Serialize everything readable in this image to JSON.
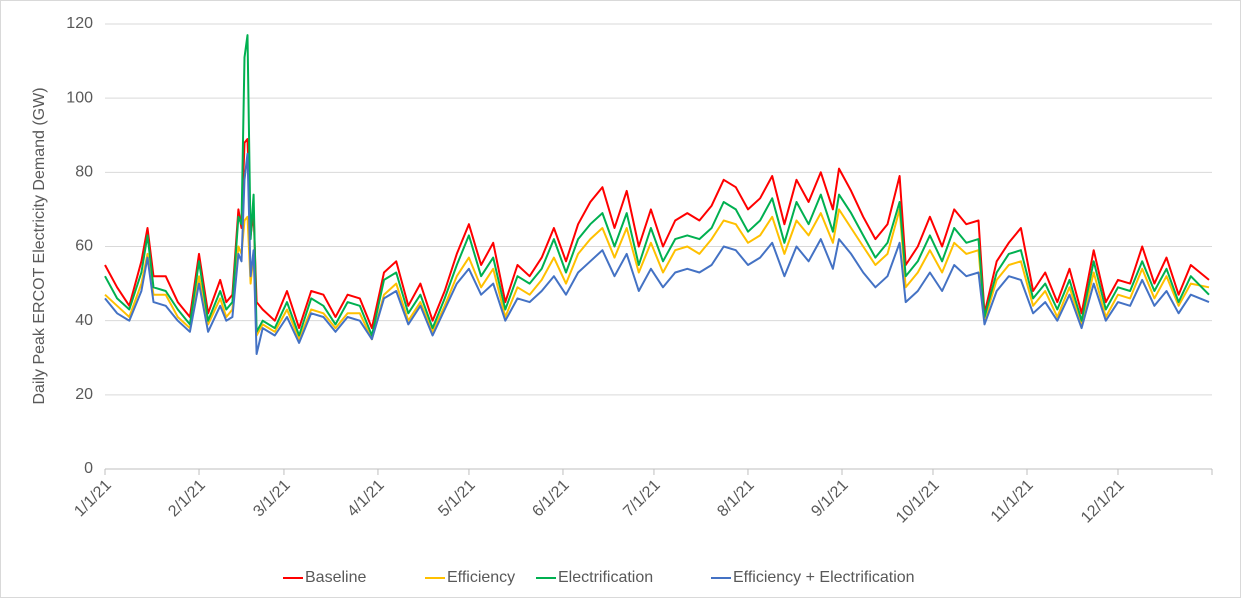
{
  "chart_data": {
    "type": "line",
    "y_label": "Daily Peak ERCOT Electricity Demand (GW)",
    "x": [
      0,
      4,
      8,
      12,
      14,
      16,
      20,
      24,
      28,
      31,
      34,
      38,
      40,
      42,
      44,
      45,
      46,
      47,
      48,
      49,
      50,
      52,
      56,
      60,
      64,
      68,
      72,
      76,
      80,
      84,
      88,
      92,
      96,
      100,
      104,
      108,
      112,
      116,
      120,
      124,
      128,
      132,
      136,
      140,
      144,
      148,
      152,
      156,
      160,
      164,
      168,
      172,
      176,
      180,
      184,
      188,
      192,
      196,
      200,
      204,
      208,
      212,
      216,
      220,
      224,
      228,
      232,
      236,
      240,
      242,
      246,
      250,
      254,
      258,
      262,
      264,
      268,
      272,
      276,
      280,
      284,
      288,
      290,
      294,
      298,
      302,
      306,
      310,
      314,
      318,
      322,
      326,
      330,
      334,
      338,
      342,
      346,
      350,
      354,
      358,
      364
    ],
    "series": [
      {
        "name": "Baseline",
        "color": "#ff0000",
        "values": [
          55,
          49,
          44,
          56,
          65,
          52,
          52,
          45,
          41,
          58,
          42,
          51,
          45,
          47,
          70,
          65,
          88,
          89,
          63,
          69,
          45,
          43,
          40,
          48,
          38,
          48,
          47,
          41,
          47,
          46,
          38,
          53,
          56,
          44,
          50,
          40,
          48,
          58,
          66,
          55,
          61,
          45,
          55,
          52,
          57,
          65,
          56,
          66,
          72,
          76,
          65,
          75,
          60,
          70,
          60,
          67,
          69,
          67,
          71,
          78,
          76,
          70,
          73,
          79,
          66,
          78,
          72,
          80,
          70,
          81,
          75,
          68,
          62,
          66,
          79,
          55,
          60,
          68,
          60,
          70,
          66,
          67,
          42,
          56,
          61,
          65,
          48,
          53,
          45,
          54,
          42,
          59,
          45,
          51,
          50,
          60,
          50,
          57,
          47,
          55,
          51
        ]
      },
      {
        "name": "Efficiency",
        "color": "#ffc000",
        "values": [
          47,
          44,
          41,
          50,
          58,
          47,
          47,
          41,
          38,
          52,
          39,
          46,
          41,
          43,
          60,
          58,
          67,
          68,
          50,
          58,
          36,
          39,
          37,
          43,
          35,
          43,
          42,
          38,
          42,
          42,
          35,
          47,
          50,
          40,
          45,
          37,
          44,
          52,
          57,
          49,
          54,
          41,
          49,
          47,
          51,
          57,
          50,
          58,
          62,
          65,
          57,
          65,
          53,
          61,
          53,
          59,
          60,
          58,
          62,
          67,
          66,
          61,
          63,
          68,
          58,
          67,
          63,
          69,
          61,
          70,
          65,
          60,
          55,
          58,
          70,
          49,
          53,
          59,
          53,
          61,
          58,
          59,
          40,
          51,
          55,
          56,
          44,
          48,
          41,
          49,
          39,
          53,
          41,
          47,
          46,
          54,
          46,
          52,
          44,
          50,
          49
        ]
      },
      {
        "name": "Electrification",
        "color": "#00b050",
        "values": [
          52,
          46,
          43,
          53,
          63,
          49,
          48,
          43,
          39,
          56,
          40,
          48,
          43,
          45,
          68,
          66,
          111,
          117,
          62,
          74,
          37,
          40,
          38,
          45,
          36,
          46,
          44,
          39,
          45,
          44,
          36,
          51,
          53,
          42,
          47,
          38,
          46,
          55,
          63,
          52,
          57,
          43,
          52,
          50,
          54,
          62,
          53,
          62,
          66,
          69,
          60,
          69,
          55,
          65,
          56,
          62,
          63,
          62,
          65,
          72,
          70,
          64,
          67,
          73,
          61,
          72,
          66,
          74,
          64,
          74,
          69,
          63,
          57,
          61,
          72,
          52,
          56,
          63,
          56,
          65,
          61,
          62,
          41,
          53,
          58,
          59,
          46,
          50,
          43,
          51,
          40,
          56,
          43,
          49,
          48,
          56,
          48,
          54,
          45,
          52,
          47
        ]
      },
      {
        "name": "Efficiency + Electrification",
        "color": "#4472c4",
        "values": [
          46,
          42,
          40,
          48,
          57,
          45,
          44,
          40,
          37,
          50,
          37,
          44,
          40,
          41,
          58,
          56,
          78,
          85,
          52,
          59,
          31,
          38,
          36,
          41,
          34,
          42,
          41,
          37,
          41,
          40,
          35,
          46,
          48,
          39,
          44,
          36,
          43,
          50,
          54,
          47,
          50,
          40,
          46,
          45,
          48,
          52,
          47,
          53,
          56,
          59,
          52,
          58,
          48,
          54,
          49,
          53,
          54,
          53,
          55,
          60,
          59,
          55,
          57,
          61,
          52,
          60,
          56,
          62,
          54,
          62,
          58,
          53,
          49,
          52,
          61,
          45,
          48,
          53,
          48,
          55,
          52,
          53,
          39,
          48,
          52,
          51,
          42,
          45,
          40,
          47,
          38,
          50,
          40,
          45,
          44,
          51,
          44,
          48,
          42,
          47,
          45
        ]
      }
    ],
    "xlim": [
      0,
      365
    ],
    "xticks": [
      {
        "value": 0,
        "label": "1/1/21"
      },
      {
        "value": 31,
        "label": "2/1/21"
      },
      {
        "value": 59,
        "label": "3/1/21"
      },
      {
        "value": 90,
        "label": "4/1/21"
      },
      {
        "value": 120,
        "label": "5/1/21"
      },
      {
        "value": 151,
        "label": "6/1/21"
      },
      {
        "value": 181,
        "label": "7/1/21"
      },
      {
        "value": 212,
        "label": "8/1/21"
      },
      {
        "value": 243,
        "label": "9/1/21"
      },
      {
        "value": 273,
        "label": "10/1/21"
      },
      {
        "value": 304,
        "label": "11/1/21"
      },
      {
        "value": 334,
        "label": "12/1/21"
      }
    ],
    "ylim": [
      0,
      120
    ],
    "yticks": [
      0,
      20,
      40,
      60,
      80,
      100,
      120
    ],
    "grid": true,
    "legend": "bottom"
  }
}
